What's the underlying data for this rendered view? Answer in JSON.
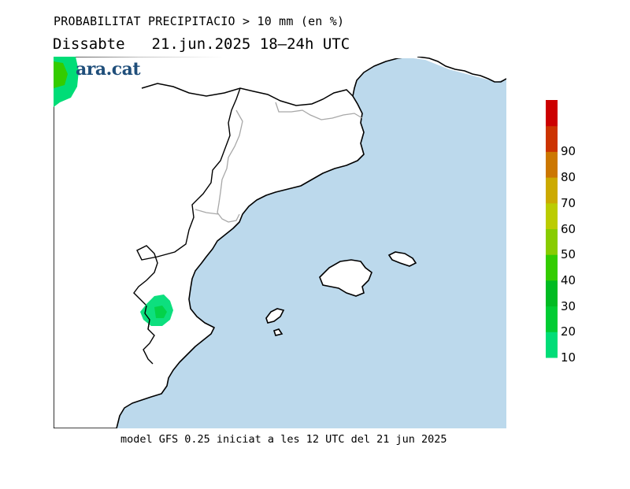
{
  "header": {
    "title": "PROBABILITAT PRECIPITACIO > 10 mm (en %)",
    "day": "Dissabte",
    "datetime": "21.jun.2025 18–24h UTC"
  },
  "footer": {
    "model_info": "model GFS 0.25 iniciat a les 12 UTC del 21 jun 2025"
  },
  "logo": {
    "text": "ara.cat"
  },
  "colors": {
    "sea": "#bcd9ec",
    "land": "#ffffff",
    "coast": "#000000",
    "borders": "#a8a8a8"
  },
  "legend": {
    "levels": [
      {
        "label": "10",
        "color": "#00dd77"
      },
      {
        "label": "20",
        "color": "#00cc33"
      },
      {
        "label": "30",
        "color": "#00bb22"
      },
      {
        "label": "40",
        "color": "#33cc00"
      },
      {
        "label": "50",
        "color": "#88cc00"
      },
      {
        "label": "60",
        "color": "#bbcc00"
      },
      {
        "label": "70",
        "color": "#ccaa00"
      },
      {
        "label": "80",
        "color": "#cc7700"
      },
      {
        "label": "90",
        "color": "#cc3300"
      },
      {
        "label": "",
        "color": "#cc0000"
      }
    ]
  }
}
